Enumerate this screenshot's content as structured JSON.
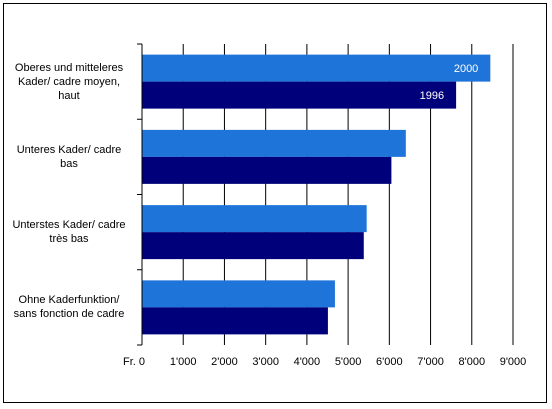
{
  "chart_data": {
    "type": "bar",
    "orientation": "horizontal",
    "categories": [
      "Oberes und mitteleres\nKader/ cadre moyen,\nhaut",
      "Unteres Kader/ cadre\nbas",
      "Unterstes Kader/ cadre\ntrès bas",
      "Ohne Kaderfunktion/\nsans fonction de cadre"
    ],
    "series": [
      {
        "name": "2000",
        "color": "#1f74d9",
        "values": [
          8450,
          6400,
          5450,
          4680
        ]
      },
      {
        "name": "1996",
        "color": "#00007a",
        "values": [
          7620,
          6050,
          5380,
          4510
        ]
      }
    ],
    "xlim": [
      0,
      9000
    ],
    "xticks": [
      0,
      1000,
      2000,
      3000,
      4000,
      5000,
      6000,
      7000,
      8000,
      9000
    ],
    "xtick_labels": [
      "Fr. 0",
      "1'000",
      "2'000",
      "3'000",
      "4'000",
      "5'000",
      "6'000",
      "7'000",
      "8'000",
      "9'000"
    ],
    "grid": "vertical",
    "legend": "in-bar labels on first category",
    "title": "",
    "xlabel": "",
    "ylabel": ""
  }
}
